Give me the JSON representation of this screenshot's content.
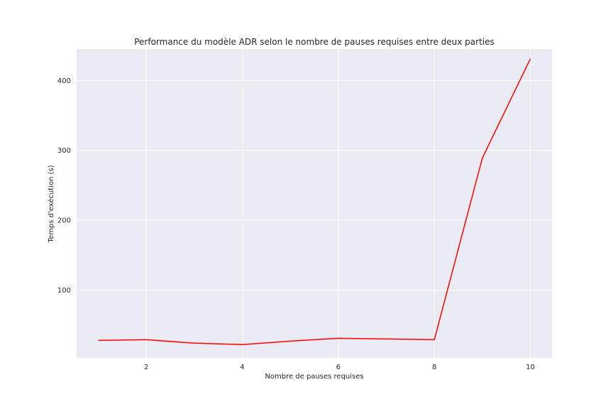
{
  "chart_data": {
    "type": "line",
    "title": "Performance du modèle ADR selon le nombre de pauses requises entre deux parties",
    "xlabel": "Nombre de pauses requises",
    "ylabel": "Temps d'exécution (s)",
    "x": [
      1,
      2,
      3,
      4,
      5,
      6,
      7,
      8,
      9,
      10
    ],
    "series": [
      {
        "color": "#ff0000",
        "values": [
          28,
          29,
          24,
          22,
          27,
          31,
          30,
          29,
          289,
          431
        ]
      }
    ],
    "xlim": [
      0.55,
      10.45
    ],
    "ylim": [
      3,
      445
    ],
    "xticks": [
      2,
      4,
      6,
      8,
      10
    ],
    "yticks": [
      100,
      200,
      300,
      400
    ],
    "grid": true,
    "background": "#eaeaf2",
    "grid_color": "#ffffff"
  }
}
